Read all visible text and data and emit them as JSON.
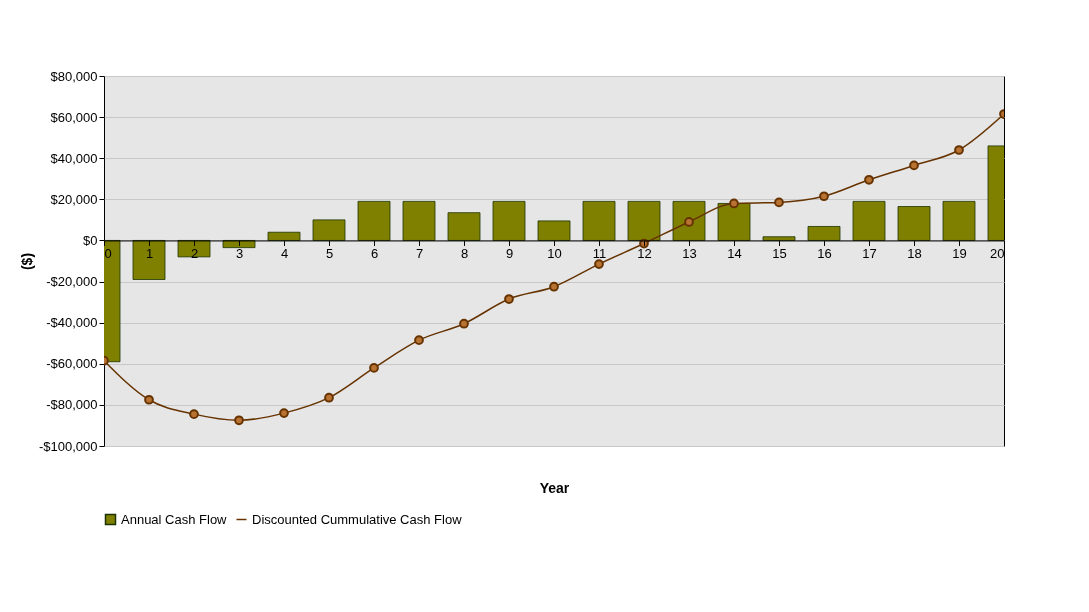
{
  "chart_data": {
    "type": "bar",
    "xlabel": "Year",
    "ylabel": "($)",
    "x": [
      0,
      1,
      2,
      3,
      4,
      5,
      6,
      7,
      8,
      9,
      10,
      11,
      12,
      13,
      14,
      15,
      16,
      17,
      18,
      19,
      20
    ],
    "xlim": [
      0,
      20
    ],
    "xticks": [
      0,
      1,
      2,
      3,
      4,
      5,
      6,
      7,
      8,
      9,
      10,
      11,
      12,
      13,
      14,
      15,
      16,
      17,
      18,
      19,
      20
    ],
    "ylim": [
      -100000,
      80000
    ],
    "yticks": [
      {
        "value": -100000,
        "label": "-$100,000"
      },
      {
        "value": -80000,
        "label": "-$80,000"
      },
      {
        "value": -60000,
        "label": "-$60,000"
      },
      {
        "value": -40000,
        "label": "-$40,000"
      },
      {
        "value": -20000,
        "label": "-$20,000"
      },
      {
        "value": 0,
        "label": "$0"
      },
      {
        "value": 20000,
        "label": "$20,000"
      },
      {
        "value": 40000,
        "label": "$40,000"
      },
      {
        "value": 60000,
        "label": "$60,000"
      },
      {
        "value": 80000,
        "label": "$80,000"
      }
    ],
    "series": [
      {
        "name": "Annual Cash Flow",
        "color": "#808000",
        "values": [
          -59000,
          -19000,
          -8000,
          -3500,
          4000,
          10000,
          19000,
          19000,
          13500,
          19000,
          9500,
          19000,
          19000,
          19000,
          18000,
          1800,
          6800,
          19000,
          16500,
          19000,
          46000
        ]
      },
      {
        "name": "Discounted Cummulative Cash Flow",
        "type": "line",
        "color": "#663300",
        "marker": "circle",
        "line_style": "solid",
        "values": [
          -58500,
          -77500,
          -84500,
          -87500,
          -84000,
          -76500,
          -62000,
          -48500,
          -40500,
          -28500,
          -22500,
          -11500,
          -1500,
          9000,
          18000,
          18500,
          21500,
          29500,
          36500,
          44000,
          61500
        ]
      }
    ],
    "grid": "y",
    "legend": "bottom"
  }
}
